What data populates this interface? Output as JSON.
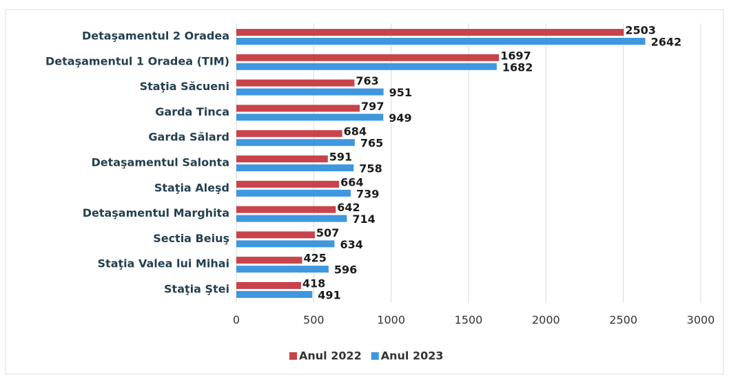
{
  "chart_data": {
    "type": "bar",
    "orientation": "horizontal",
    "categories": [
      "Detaşamentul 2 Oradea",
      "Detaşamentul 1 Oradea (TIM)",
      "Staţia Săcueni",
      "Garda Tinca",
      "Garda Sălard",
      "Detaşamentul Salonta",
      "Staţia Aleşd",
      "Detaşamentul Marghita",
      "Sectia Beiuş",
      "Staţia Valea lui Mihai",
      "Staţia Ştei"
    ],
    "series": [
      {
        "name": "Anul 2022",
        "color": "#c8444a",
        "values": [
          2503,
          1697,
          763,
          797,
          684,
          591,
          664,
          642,
          507,
          425,
          418
        ]
      },
      {
        "name": "Anul 2023",
        "color": "#3f97e0",
        "values": [
          2642,
          1682,
          951,
          949,
          765,
          758,
          739,
          714,
          634,
          596,
          491
        ]
      }
    ],
    "xlim": [
      0,
      3000
    ],
    "xticks": [
      0,
      500,
      1000,
      1500,
      2000,
      2500,
      3000
    ],
    "grid": true,
    "legend": "bottom"
  }
}
